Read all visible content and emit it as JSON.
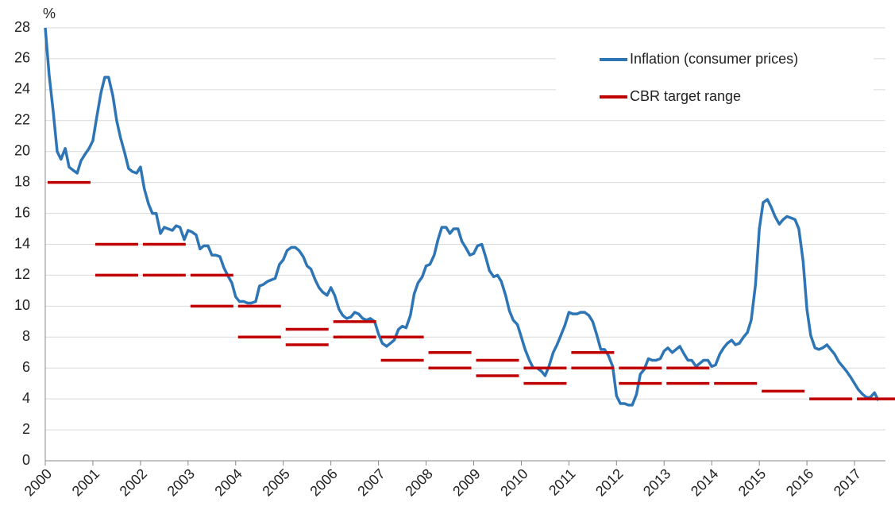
{
  "chart_data": {
    "type": "line",
    "y_label": "%",
    "xlim": [
      2000,
      2017.65
    ],
    "xticks": [
      2000,
      2001,
      2002,
      2003,
      2004,
      2005,
      2006,
      2007,
      2008,
      2009,
      2010,
      2011,
      2012,
      2013,
      2014,
      2015,
      2016,
      2017
    ],
    "ylim": [
      0,
      28
    ],
    "yticks": [
      0,
      2,
      4,
      6,
      8,
      10,
      12,
      14,
      16,
      18,
      20,
      22,
      24,
      26,
      28
    ],
    "grid": true,
    "legend": "top-right",
    "series": [
      {
        "name": "Inflation (consumer prices)",
        "color": "#2e75b6",
        "x": [
          2000,
          2000.08,
          2000.17,
          2000.25,
          2000.33,
          2000.42,
          2000.5,
          2000.58,
          2000.67,
          2000.75,
          2000.83,
          2000.92,
          2001,
          2001.08,
          2001.17,
          2001.25,
          2001.33,
          2001.42,
          2001.5,
          2001.58,
          2001.67,
          2001.75,
          2001.83,
          2001.92,
          2002,
          2002.08,
          2002.17,
          2002.25,
          2002.33,
          2002.42,
          2002.5,
          2002.58,
          2002.67,
          2002.75,
          2002.83,
          2002.92,
          2003,
          2003.08,
          2003.17,
          2003.25,
          2003.33,
          2003.42,
          2003.5,
          2003.58,
          2003.67,
          2003.75,
          2003.83,
          2003.92,
          2004,
          2004.08,
          2004.17,
          2004.25,
          2004.33,
          2004.42,
          2004.5,
          2004.58,
          2004.67,
          2004.75,
          2004.83,
          2004.92,
          2005,
          2005.08,
          2005.17,
          2005.25,
          2005.33,
          2005.42,
          2005.5,
          2005.58,
          2005.67,
          2005.75,
          2005.83,
          2005.92,
          2006,
          2006.08,
          2006.17,
          2006.25,
          2006.33,
          2006.42,
          2006.5,
          2006.58,
          2006.67,
          2006.75,
          2006.83,
          2006.92,
          2007,
          2007.08,
          2007.17,
          2007.25,
          2007.33,
          2007.42,
          2007.5,
          2007.58,
          2007.67,
          2007.75,
          2007.83,
          2007.92,
          2008,
          2008.08,
          2008.17,
          2008.25,
          2008.33,
          2008.42,
          2008.5,
          2008.58,
          2008.67,
          2008.75,
          2008.83,
          2008.92,
          2009,
          2009.08,
          2009.17,
          2009.25,
          2009.33,
          2009.42,
          2009.5,
          2009.58,
          2009.67,
          2009.75,
          2009.83,
          2009.92,
          2010,
          2010.08,
          2010.17,
          2010.25,
          2010.33,
          2010.42,
          2010.5,
          2010.58,
          2010.67,
          2010.75,
          2010.83,
          2010.92,
          2011,
          2011.08,
          2011.17,
          2011.25,
          2011.33,
          2011.42,
          2011.5,
          2011.58,
          2011.67,
          2011.75,
          2011.83,
          2011.92,
          2012,
          2012.08,
          2012.17,
          2012.25,
          2012.33,
          2012.42,
          2012.5,
          2012.58,
          2012.67,
          2012.75,
          2012.83,
          2012.92,
          2013,
          2013.08,
          2013.17,
          2013.25,
          2013.33,
          2013.42,
          2013.5,
          2013.58,
          2013.67,
          2013.75,
          2013.83,
          2013.92,
          2014,
          2014.08,
          2014.17,
          2014.25,
          2014.33,
          2014.42,
          2014.5,
          2014.58,
          2014.67,
          2014.75,
          2014.83,
          2014.92,
          2015,
          2015.08,
          2015.17,
          2015.25,
          2015.33,
          2015.42,
          2015.5,
          2015.58,
          2015.67,
          2015.75,
          2015.83,
          2015.92,
          2016,
          2016.08,
          2016.17,
          2016.25,
          2016.33,
          2016.42,
          2016.5,
          2016.58,
          2016.67,
          2016.75,
          2016.83,
          2016.92,
          2017,
          2017.08,
          2017.17,
          2017.25,
          2017.33,
          2017.42,
          2017.5
        ],
        "values": [
          28.0,
          25.0,
          22.5,
          20.0,
          19.5,
          20.2,
          19.0,
          18.8,
          18.6,
          19.4,
          19.8,
          20.2,
          20.7,
          22.2,
          23.8,
          24.8,
          24.8,
          23.6,
          22.0,
          20.9,
          19.9,
          18.9,
          18.7,
          18.6,
          19.0,
          17.6,
          16.6,
          16.0,
          16.0,
          14.7,
          15.1,
          15.0,
          14.9,
          15.2,
          15.1,
          14.3,
          14.9,
          14.8,
          14.6,
          13.7,
          13.9,
          13.9,
          13.3,
          13.3,
          13.2,
          12.5,
          12.0,
          11.5,
          10.6,
          10.3,
          10.3,
          10.2,
          10.2,
          10.3,
          11.3,
          11.4,
          11.6,
          11.7,
          11.8,
          12.7,
          13.0,
          13.6,
          13.8,
          13.8,
          13.6,
          13.2,
          12.6,
          12.4,
          11.7,
          11.2,
          10.9,
          10.7,
          11.2,
          10.7,
          9.8,
          9.4,
          9.2,
          9.3,
          9.6,
          9.5,
          9.2,
          9.1,
          9.2,
          9.0,
          8.2,
          7.6,
          7.4,
          7.6,
          7.8,
          8.5,
          8.7,
          8.6,
          9.4,
          10.8,
          11.5,
          11.9,
          12.6,
          12.7,
          13.3,
          14.3,
          15.1,
          15.1,
          14.7,
          15.0,
          15.0,
          14.2,
          13.8,
          13.3,
          13.4,
          13.9,
          14.0,
          13.2,
          12.3,
          11.9,
          12.0,
          11.6,
          10.7,
          9.7,
          9.1,
          8.8,
          8.0,
          7.2,
          6.5,
          6.0,
          6.0,
          5.8,
          5.5,
          6.1,
          7.0,
          7.5,
          8.1,
          8.8,
          9.6,
          9.5,
          9.5,
          9.6,
          9.6,
          9.4,
          9.0,
          8.2,
          7.2,
          7.2,
          6.8,
          6.1,
          4.2,
          3.7,
          3.7,
          3.6,
          3.6,
          4.3,
          5.6,
          5.9,
          6.6,
          6.5,
          6.5,
          6.6,
          7.1,
          7.3,
          7.0,
          7.2,
          7.4,
          6.9,
          6.5,
          6.5,
          6.1,
          6.3,
          6.5,
          6.5,
          6.1,
          6.2,
          6.9,
          7.3,
          7.6,
          7.8,
          7.5,
          7.6,
          8.0,
          8.3,
          9.1,
          11.4,
          15.0,
          16.7,
          16.9,
          16.4,
          15.8,
          15.3,
          15.6,
          15.8,
          15.7,
          15.6,
          15.0,
          12.9,
          9.8,
          8.1,
          7.3,
          7.2,
          7.3,
          7.5,
          7.2,
          6.9,
          6.4,
          6.1,
          5.8,
          5.4,
          5.0,
          4.6,
          4.3,
          4.1,
          4.1,
          4.4,
          3.9
        ]
      }
    ],
    "target": {
      "name": "CBR target range",
      "color": "#c00000",
      "x": [
        2000,
        2001,
        2002,
        2003,
        2004,
        2005,
        2006,
        2007,
        2008,
        2009,
        2010,
        2011,
        2012,
        2013,
        2014,
        2015,
        2016,
        2017
      ],
      "low": [
        18,
        12,
        12,
        10,
        8,
        7.5,
        8,
        6.5,
        6,
        5.5,
        5,
        6,
        5,
        5,
        5,
        4.5,
        4,
        4
      ],
      "high": [
        null,
        14,
        14,
        12,
        10,
        8.5,
        9,
        8,
        7,
        6.5,
        6,
        7,
        6,
        6,
        null,
        null,
        null,
        null
      ]
    }
  }
}
